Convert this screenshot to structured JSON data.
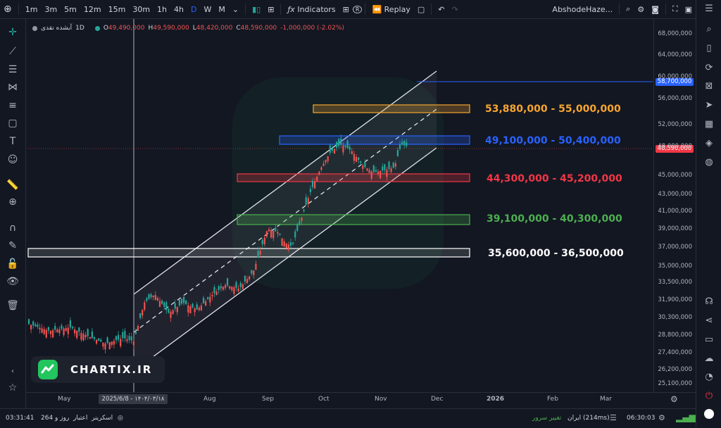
{
  "toolbar": {
    "timeframes": [
      "1m",
      "3m",
      "5m",
      "12m",
      "15m",
      "30m",
      "1h",
      "4h",
      "D",
      "W",
      "M"
    ],
    "active_timeframe": "D",
    "indicators_label": "Indicators",
    "replay_label": "Replay",
    "account_name": "AbshodeHaze..."
  },
  "legend": {
    "symbol": "آبشده نقدی",
    "interval": "1D",
    "open_label": "O",
    "open": "49,490,000",
    "high_label": "H",
    "high": "49,590,000",
    "low_label": "L",
    "low": "48,420,000",
    "close_label": "C",
    "close": "48,590,000",
    "change": "-1,000,000 (-2.02%)"
  },
  "price_axis": {
    "labels": [
      "68,000,000",
      "64,000,000",
      "60,000,000",
      "56,000,000",
      "52,000,000",
      "48,000,000",
      "45,000,000",
      "43,000,000",
      "41,000,000",
      "39,000,000",
      "37,000,000",
      "35,000,000",
      "33,500,000",
      "31,900,000",
      "30,300,000",
      "28,800,000",
      "27,400,000",
      "26,200,000",
      "25,100,000"
    ],
    "current_price_tag": "48,590,000",
    "level_tag": "58,700,000"
  },
  "time_axis": {
    "labels": [
      "May",
      "Aug",
      "Sep",
      "Oct",
      "Nov",
      "Dec",
      "2026",
      "Feb",
      "Mar"
    ],
    "crosshair_date": "2025/6/8 - ۱۴۰۴/۰۳/۱۸"
  },
  "zones": [
    {
      "label": "53,880,000 - 55,000,000",
      "color": "#f7a531"
    },
    {
      "label": "49,100,000 - 50,400,000",
      "color": "#2962ff"
    },
    {
      "label": "44,300,000 - 45,200,000",
      "color": "#f23645"
    },
    {
      "label": "39,100,000 - 40,300,000",
      "color": "#4caf50"
    },
    {
      "label": "35,600,000 - 36,500,000",
      "color": "#ffffff"
    }
  ],
  "watermark": {
    "brand": "CHARTIX.IR"
  },
  "bottombar": {
    "clock_left": "03:31:41",
    "validity": "264 روز و",
    "validity_label": "اعتبار",
    "screener": "اسکرینر",
    "server_change": "تغییر سرور",
    "server_name": "ایران (214ms)",
    "clock_right": "06:30:03"
  },
  "colors": {
    "up": "#26a69a",
    "down": "#ef5350",
    "accent": "#2962ff"
  }
}
